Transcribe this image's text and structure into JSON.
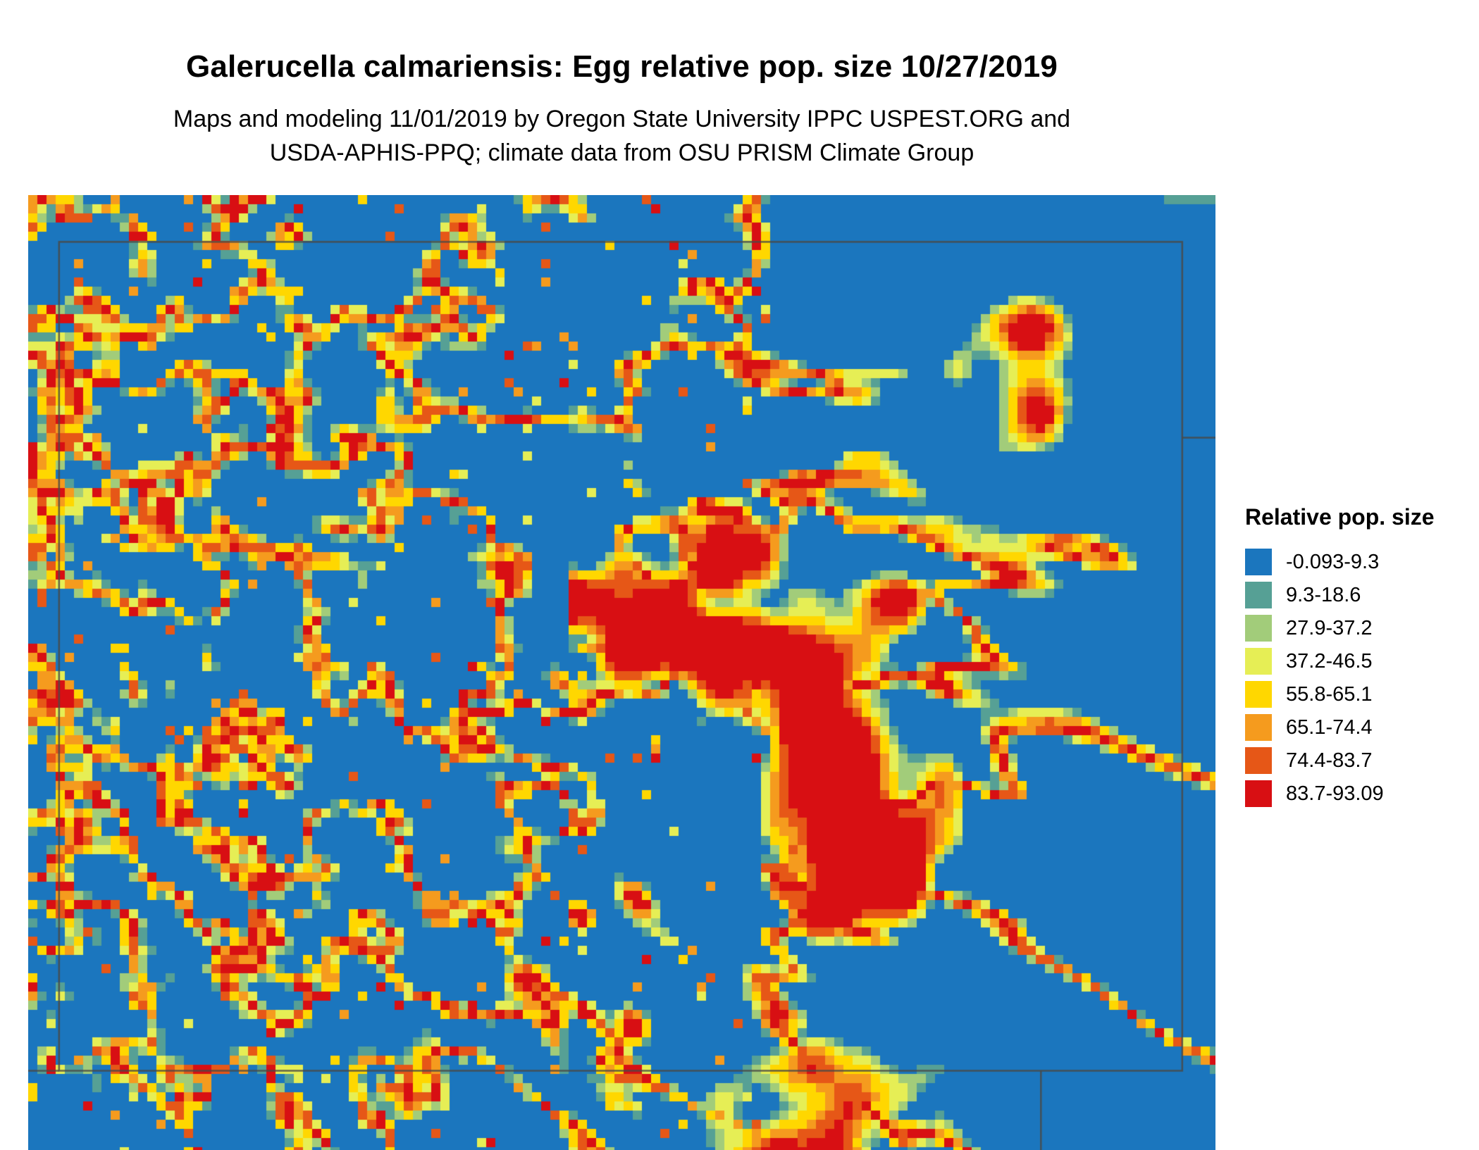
{
  "title": "Galerucella calmariensis: Egg relative pop. size 10/27/2019",
  "subtitle": {
    "line1": "Maps and modeling 11/01/2019 by Oregon State University IPPC USPEST.ORG and",
    "line2": "USDA-APHIS-PPQ; climate data from OSU PRISM Climate Group"
  },
  "legend": {
    "title": "Relative pop. size",
    "entries": [
      {
        "label": "-0.093-9.3",
        "color": "#1b76be"
      },
      {
        "label": "9.3-18.6",
        "color": "#56a095"
      },
      {
        "label": "27.9-37.2",
        "color": "#a2cc7a"
      },
      {
        "label": "37.2-46.5",
        "color": "#e6ee55"
      },
      {
        "label": "55.8-65.1",
        "color": "#ffd700"
      },
      {
        "label": "65.1-74.4",
        "color": "#f59b1e"
      },
      {
        "label": "74.4-83.7",
        "color": "#e65717"
      },
      {
        "label": "83.7-93.09",
        "color": "#d80f13"
      }
    ]
  },
  "map": {
    "background_color": "#1b76be",
    "boundary_color": "#4a4a46"
  }
}
